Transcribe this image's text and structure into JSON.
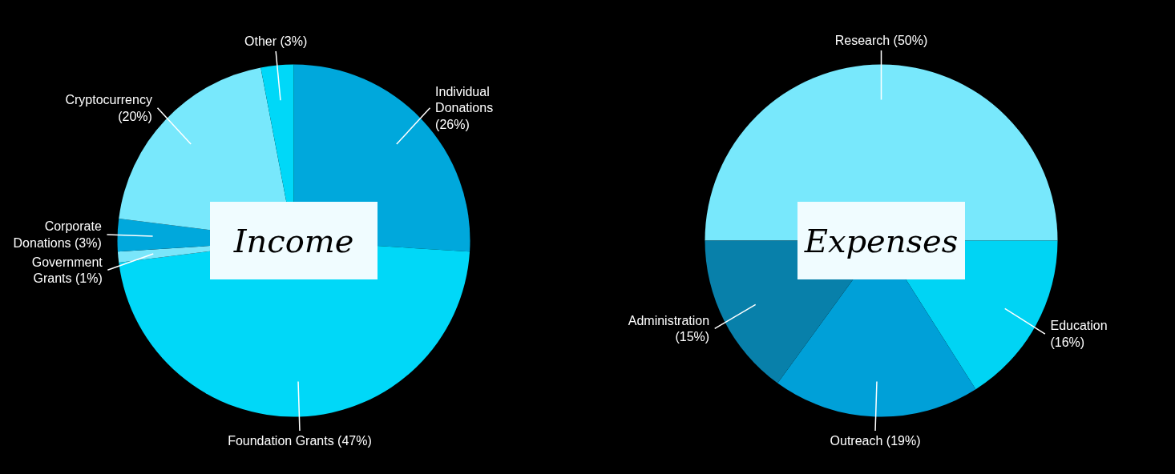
{
  "chart_data": [
    {
      "type": "pie",
      "title": "Income",
      "categories": [
        "Individual Donations",
        "Foundation Grants",
        "Government Grants",
        "Corporate Donations",
        "Cryptocurrency",
        "Other"
      ],
      "values": [
        26,
        47,
        1,
        3,
        20,
        3
      ],
      "value_labels": [
        "(26%)",
        "(47%)",
        "(1%)",
        "(3%)",
        "(20%)",
        "(3%)"
      ],
      "colors": [
        "#00a8dc",
        "#00d8f8",
        "#7ae6fa",
        "#00a8dc",
        "#78e8fc",
        "#00d8f8"
      ]
    },
    {
      "type": "pie",
      "title": "Expenses",
      "categories": [
        "Research",
        "Education",
        "Outreach",
        "Administration"
      ],
      "values": [
        50,
        16,
        19,
        15
      ],
      "value_labels": [
        "(50%)",
        "(16%)",
        "(19%)",
        "(15%)"
      ],
      "colors": [
        "#78e8fc",
        "#00d4f4",
        "#00a0d8",
        "#0880aa"
      ]
    }
  ]
}
